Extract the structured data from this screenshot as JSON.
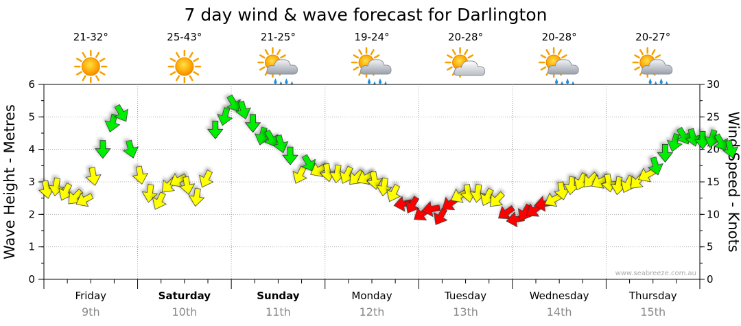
{
  "chart_data": {
    "type": "line",
    "title": "7 day wind & wave forecast for Darlington",
    "y_left_label": "Wave Height - Metres",
    "y_right_label": "Wind Speed - Knots",
    "y_left_range": [
      0,
      6
    ],
    "y_right_range": [
      0,
      30
    ],
    "y_left_ticks": [
      "0",
      "1",
      "2",
      "3",
      "4",
      "5",
      "6"
    ],
    "y_right_ticks": [
      "0",
      "5",
      "10",
      "15",
      "20",
      "25",
      "30"
    ],
    "grid": true,
    "watermark": "www.seabreeze.com.au",
    "wind_color_scale": {
      "light": "#ffff00",
      "moderate": "#00ee00",
      "strong": "#ff0000"
    },
    "days": [
      {
        "day": "Friday",
        "date": "9th",
        "temp": "21-32°",
        "icon": "sun-icon",
        "bold": false
      },
      {
        "day": "Saturday",
        "date": "10th",
        "temp": "25-43°",
        "icon": "sun-icon",
        "bold": true
      },
      {
        "day": "Sunday",
        "date": "11th",
        "temp": "21-25°",
        "icon": "sun-cloud-rain-icon",
        "bold": true
      },
      {
        "day": "Monday",
        "date": "12th",
        "temp": "19-24°",
        "icon": "sun-cloud-rain-icon",
        "bold": false
      },
      {
        "day": "Tuesday",
        "date": "13th",
        "temp": "20-28°",
        "icon": "sun-cloud-icon",
        "bold": false
      },
      {
        "day": "Wednesday",
        "date": "14th",
        "temp": "20-28°",
        "icon": "sun-cloud-rain-icon",
        "bold": false
      },
      {
        "day": "Thursday",
        "date": "15th",
        "temp": "20-27°",
        "icon": "sun-cloud-rain-icon",
        "bold": false
      }
    ],
    "wind_series": {
      "name": "Wind Speed",
      "units": "knots",
      "points": [
        {
          "t": 0.0,
          "v": 13.8,
          "c": "y"
        },
        {
          "t": 0.2,
          "v": 14.2,
          "c": "y"
        },
        {
          "t": 0.4,
          "v": 13.4,
          "c": "y"
        },
        {
          "t": 0.6,
          "v": 12.6,
          "c": "y"
        },
        {
          "t": 0.8,
          "v": 12.2,
          "c": "y"
        },
        {
          "t": 1.0,
          "v": 15.8,
          "c": "y"
        },
        {
          "t": 1.2,
          "v": 20.0,
          "c": "g"
        },
        {
          "t": 1.4,
          "v": 24.0,
          "c": "g"
        },
        {
          "t": 1.6,
          "v": 25.5,
          "c": "g"
        },
        {
          "t": 1.8,
          "v": 20.0,
          "c": "g"
        },
        {
          "t": 2.0,
          "v": 16.0,
          "c": "y"
        },
        {
          "t": 2.2,
          "v": 13.2,
          "c": "y"
        },
        {
          "t": 2.4,
          "v": 12.0,
          "c": "y"
        },
        {
          "t": 2.6,
          "v": 14.4,
          "c": "y"
        },
        {
          "t": 2.8,
          "v": 15.2,
          "c": "y"
        },
        {
          "t": 3.0,
          "v": 14.4,
          "c": "y"
        },
        {
          "t": 3.2,
          "v": 12.6,
          "c": "y"
        },
        {
          "t": 3.4,
          "v": 15.4,
          "c": "y"
        },
        {
          "t": 3.6,
          "v": 23.0,
          "c": "g"
        },
        {
          "t": 3.8,
          "v": 25.0,
          "c": "g"
        },
        {
          "t": 4.0,
          "v": 27.0,
          "c": "g"
        },
        {
          "t": 4.2,
          "v": 26.0,
          "c": "g"
        },
        {
          "t": 4.4,
          "v": 24.0,
          "c": "g"
        },
        {
          "t": 4.6,
          "v": 22.0,
          "c": "g"
        },
        {
          "t": 4.8,
          "v": 21.6,
          "c": "g"
        },
        {
          "t": 5.0,
          "v": 20.8,
          "c": "g"
        },
        {
          "t": 5.2,
          "v": 19.0,
          "c": "g"
        },
        {
          "t": 5.4,
          "v": 16.0,
          "c": "y"
        },
        {
          "t": 5.6,
          "v": 17.8,
          "c": "g"
        },
        {
          "t": 5.8,
          "v": 16.8,
          "c": "y"
        },
        {
          "t": 6.0,
          "v": 16.4,
          "c": "y"
        },
        {
          "t": 6.2,
          "v": 16.2,
          "c": "y"
        },
        {
          "t": 6.4,
          "v": 16.0,
          "c": "y"
        },
        {
          "t": 6.6,
          "v": 15.6,
          "c": "y"
        },
        {
          "t": 6.8,
          "v": 15.6,
          "c": "y"
        },
        {
          "t": 7.0,
          "v": 15.2,
          "c": "y"
        },
        {
          "t": 7.2,
          "v": 14.2,
          "c": "y"
        },
        {
          "t": 7.4,
          "v": 13.2,
          "c": "y"
        },
        {
          "t": 7.6,
          "v": 11.6,
          "c": "r"
        },
        {
          "t": 7.8,
          "v": 11.4,
          "c": "r"
        },
        {
          "t": 8.0,
          "v": 10.0,
          "c": "r"
        },
        {
          "t": 8.2,
          "v": 10.8,
          "c": "r"
        },
        {
          "t": 8.4,
          "v": 9.6,
          "c": "r"
        },
        {
          "t": 8.6,
          "v": 11.6,
          "c": "r"
        },
        {
          "t": 8.8,
          "v": 12.8,
          "c": "y"
        },
        {
          "t": 9.0,
          "v": 13.2,
          "c": "y"
        },
        {
          "t": 9.2,
          "v": 13.2,
          "c": "y"
        },
        {
          "t": 9.4,
          "v": 12.6,
          "c": "y"
        },
        {
          "t": 9.6,
          "v": 12.2,
          "c": "y"
        },
        {
          "t": 9.8,
          "v": 10.2,
          "c": "r"
        },
        {
          "t": 10.0,
          "v": 9.2,
          "c": "r"
        },
        {
          "t": 10.2,
          "v": 10.2,
          "c": "r"
        },
        {
          "t": 10.4,
          "v": 10.6,
          "c": "r"
        },
        {
          "t": 10.6,
          "v": 11.6,
          "c": "r"
        },
        {
          "t": 10.8,
          "v": 12.2,
          "c": "y"
        },
        {
          "t": 11.0,
          "v": 13.6,
          "c": "y"
        },
        {
          "t": 11.2,
          "v": 14.4,
          "c": "y"
        },
        {
          "t": 11.4,
          "v": 15.0,
          "c": "y"
        },
        {
          "t": 11.6,
          "v": 15.2,
          "c": "y"
        },
        {
          "t": 11.8,
          "v": 15.0,
          "c": "y"
        },
        {
          "t": 12.0,
          "v": 14.8,
          "c": "y"
        },
        {
          "t": 12.2,
          "v": 14.4,
          "c": "y"
        },
        {
          "t": 12.4,
          "v": 14.6,
          "c": "y"
        },
        {
          "t": 12.6,
          "v": 15.0,
          "c": "y"
        },
        {
          "t": 12.8,
          "v": 16.0,
          "c": "y"
        },
        {
          "t": 13.0,
          "v": 17.4,
          "c": "g"
        },
        {
          "t": 13.2,
          "v": 19.4,
          "c": "g"
        },
        {
          "t": 13.4,
          "v": 21.0,
          "c": "g"
        },
        {
          "t": 13.6,
          "v": 22.0,
          "c": "g"
        },
        {
          "t": 13.8,
          "v": 21.8,
          "c": "g"
        },
        {
          "t": 14.0,
          "v": 21.4,
          "c": "g"
        },
        {
          "t": 14.2,
          "v": 21.6,
          "c": "g"
        },
        {
          "t": 14.4,
          "v": 21.0,
          "c": "g"
        },
        {
          "t": 14.6,
          "v": 20.0,
          "c": "g"
        }
      ]
    }
  }
}
